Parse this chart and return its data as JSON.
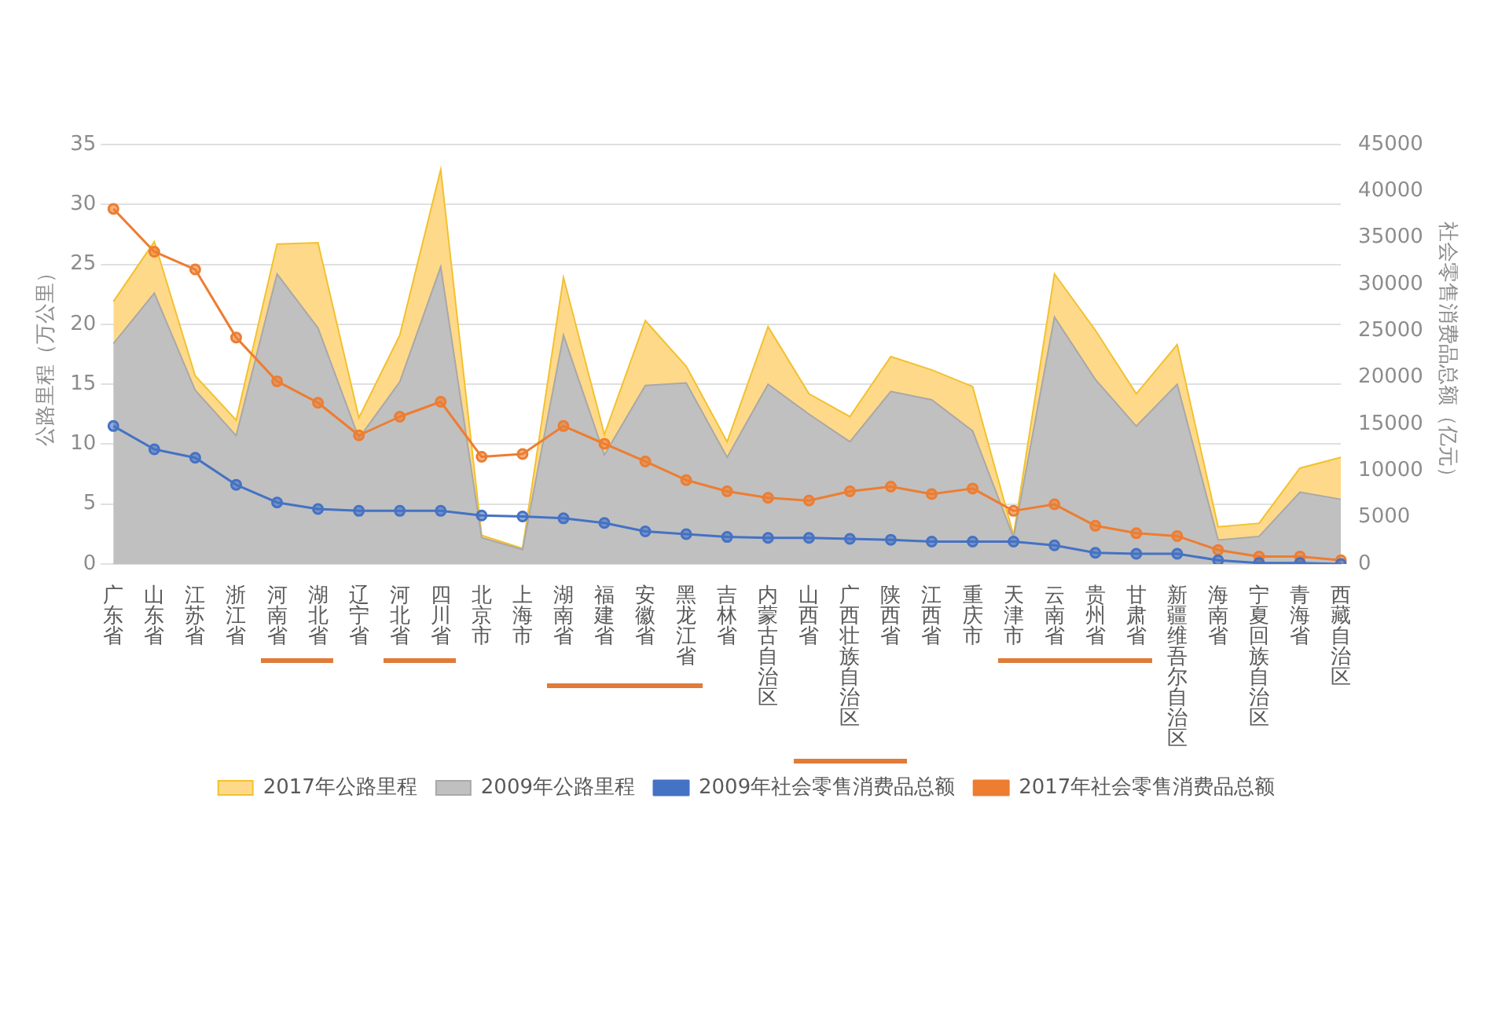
{
  "chart_data": {
    "type": "line",
    "ylabel": "公路里程（万公里）",
    "y2label": "社会零售消费品总额（亿元）",
    "categories": [
      "广东省",
      "山东省",
      "江苏省",
      "浙江省",
      "河南省",
      "湖北省",
      "辽宁省",
      "河北省",
      "四川省",
      "北京市",
      "上海市",
      "湖南省",
      "福建省",
      "安徽省",
      "黑龙江省",
      "吉林省",
      "内蒙古自治区",
      "山西省",
      "广西壮族自治区",
      "陕西省",
      "江西省",
      "重庆市",
      "天津市",
      "云南省",
      "贵州省",
      "甘肃省",
      "新疆维吾尔自治区",
      "海南省",
      "宁夏回族自治区",
      "青海省",
      "西藏自治区"
    ],
    "series": [
      {
        "name": "2017年公路里程",
        "type": "area",
        "color": "#ffd98a",
        "values": [
          21.9,
          26.9,
          15.7,
          12.0,
          26.7,
          26.8,
          12.2,
          19.1,
          32.9,
          2.4,
          1.3,
          23.9,
          10.8,
          20.3,
          16.5,
          10.2,
          19.8,
          14.2,
          12.3,
          17.3,
          16.2,
          14.8,
          2.4,
          24.2,
          19.5,
          14.2,
          18.3,
          3.1,
          3.4,
          8.0,
          8.9
        ]
      },
      {
        "name": "2009年公路里程",
        "type": "area",
        "color": "#c0c0c0",
        "values": [
          18.4,
          22.6,
          14.5,
          10.7,
          24.2,
          19.7,
          10.5,
          15.2,
          24.8,
          2.2,
          1.2,
          19.1,
          9.1,
          14.9,
          15.1,
          8.9,
          15.0,
          12.5,
          10.2,
          14.4,
          13.7,
          11.1,
          2.2,
          20.6,
          15.4,
          11.5,
          15.0,
          2.0,
          2.3,
          6.0,
          5.4
        ]
      },
      {
        "name": "2009年社会零售消费品总额",
        "axis": "y2",
        "marker": "circle",
        "color": "#4472c4",
        "values": [
          14800,
          12300,
          11400,
          8500,
          6600,
          5900,
          5700,
          5700,
          5700,
          5200,
          5100,
          4900,
          4400,
          3500,
          3200,
          2900,
          2800,
          2800,
          2700,
          2600,
          2400,
          2400,
          2400,
          2000,
          1200,
          1100,
          1100,
          400,
          100,
          100,
          0
        ]
      },
      {
        "name": "2017年社会零售消费品总额",
        "axis": "y2",
        "marker": "circle",
        "color": "#ed7d31",
        "values": [
          38100,
          33500,
          31600,
          24300,
          19600,
          17300,
          13800,
          15800,
          17400,
          11500,
          11800,
          14800,
          12900,
          11000,
          9000,
          7800,
          7100,
          6800,
          7800,
          8300,
          7500,
          8100,
          5700,
          6400,
          4100,
          3300,
          3000,
          1500,
          800,
          800,
          400
        ]
      }
    ],
    "ylim": [
      0,
      35
    ],
    "yticks": [
      0,
      5,
      10,
      15,
      20,
      25,
      30,
      35
    ],
    "y2lim": [
      0,
      45000
    ],
    "y2ticks": [
      0,
      5000,
      10000,
      15000,
      20000,
      25000,
      30000,
      35000,
      40000,
      45000
    ],
    "grid": "y",
    "legend": "bottom"
  }
}
